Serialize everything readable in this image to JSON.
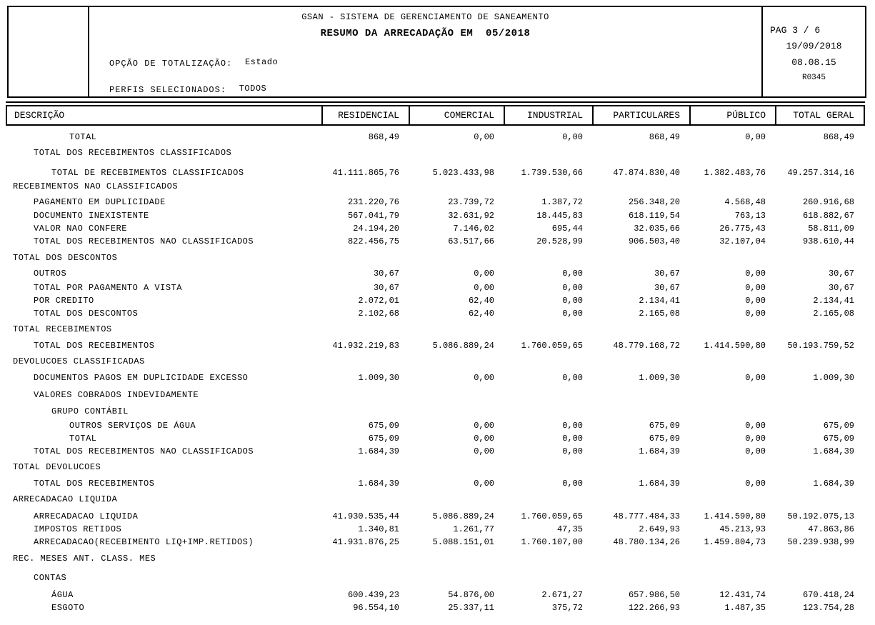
{
  "report_header": {
    "system_title": "GSAN - SISTEMA DE GERENCIAMENTO DE SANEAMENTO",
    "report_title": "RESUMO DA ARRECADAÇÃO EM  05/2018",
    "totalization_label": "OPÇÃO DE TOTALIZAÇÃO:",
    "totalization_value": "Estado",
    "profiles_label": "PERFIS SELECIONADOS:",
    "profiles_value": "TODOS",
    "page_info": "PAG 3 / 6",
    "date": "19/09/2018",
    "time": "08.08.15",
    "report_code": "R0345"
  },
  "table": {
    "columns": {
      "description": "DESCRIÇÃO",
      "residencial": "RESIDENCIAL",
      "comercial": "COMERCIAL",
      "industrial": "INDUSTRIAL",
      "particulares": "PARTICULARES",
      "publico": "PÚBLICO",
      "total_geral": "TOTAL GERAL"
    },
    "rows": [
      {
        "label": "TOTAL",
        "indent": 3,
        "gap": 5,
        "values": [
          "868,49",
          "0,00",
          "0,00",
          "868,49",
          "0,00",
          "868,49"
        ]
      },
      {
        "label": "TOTAL DOS RECEBIMENTOS CLASSIFICADOS",
        "indent": 1,
        "gap": 4,
        "values": []
      },
      {
        "label": "TOTAL DE RECEBIMENTOS CLASSIFICADOS",
        "indent": 2,
        "gap": 10,
        "values": [
          "41.111.865,76",
          "5.023.433,98",
          "1.739.530,66",
          "47.874.830,40",
          "1.382.483,76",
          "49.257.314,16"
        ]
      },
      {
        "label": "RECEBIMENTOS NAO CLASSIFICADOS",
        "indent": 0,
        "gap": 1,
        "values": []
      },
      {
        "label": "PAGAMENTO EM DUPLICIDADE",
        "indent": 1,
        "gap": 4,
        "values": [
          "231.220,76",
          "23.739,72",
          "1.387,72",
          "256.348,20",
          "4.568,48",
          "260.916,68"
        ]
      },
      {
        "label": "DOCUMENTO INEXISTENTE",
        "indent": 1,
        "gap": 1,
        "values": [
          "567.041,79",
          "32.631,92",
          "18.445,83",
          "618.119,54",
          "763,13",
          "618.882,67"
        ]
      },
      {
        "label": "VALOR NAO CONFERE",
        "indent": 1,
        "gap": 0,
        "values": [
          "24.194,20",
          "7.146,02",
          "695,44",
          "32.035,66",
          "26.775,43",
          "58.811,09"
        ]
      },
      {
        "label": "TOTAL DOS RECEBIMENTOS NAO CLASSIFICADOS",
        "indent": 1,
        "gap": 0,
        "values": [
          "822.456,75",
          "63.517,66",
          "20.528,99",
          "906.503,40",
          "32.107,04",
          "938.610,44"
        ]
      },
      {
        "label": "TOTAL DOS DESCONTOS",
        "indent": 0,
        "gap": 5,
        "values": []
      },
      {
        "label": "OUTROS",
        "indent": 1,
        "gap": 4,
        "values": [
          "30,67",
          "0,00",
          "0,00",
          "30,67",
          "0,00",
          "30,67"
        ]
      },
      {
        "label": "TOTAL POR PAGAMENTO A VISTA",
        "indent": 1,
        "gap": 2,
        "values": [
          "30,67",
          "0,00",
          "0,00",
          "30,67",
          "0,00",
          "30,67"
        ]
      },
      {
        "label": "POR CREDITO",
        "indent": 1,
        "gap": 0,
        "values": [
          "2.072,01",
          "62,40",
          "0,00",
          "2.134,41",
          "0,00",
          "2.134,41"
        ]
      },
      {
        "label": "TOTAL DOS DESCONTOS",
        "indent": 1,
        "gap": 0,
        "values": [
          "2.102,68",
          "62,40",
          "0,00",
          "2.165,08",
          "0,00",
          "2.165,08"
        ]
      },
      {
        "label": "TOTAL RECEBIMENTOS",
        "indent": 0,
        "gap": 4,
        "values": []
      },
      {
        "label": "TOTAL DOS RECEBIMENTOS",
        "indent": 1,
        "gap": 5,
        "values": [
          "41.932.219,83",
          "5.086.889,24",
          "1.760.059,65",
          "48.779.168,72",
          "1.414.590,80",
          "50.193.759,52"
        ]
      },
      {
        "label": "DEVOLUCOES CLASSIFICADAS",
        "indent": 0,
        "gap": 4,
        "values": []
      },
      {
        "label": "DOCUMENTOS PAGOS EM DUPLICIDADE EXCESSO",
        "indent": 1,
        "gap": 5,
        "values": [
          "1.009,30",
          "0,00",
          "0,00",
          "1.009,30",
          "0,00",
          "1.009,30"
        ]
      },
      {
        "label": "VALORES COBRADOS INDEVIDAMENTE",
        "indent": 1,
        "gap": 6,
        "values": []
      },
      {
        "label": "GRUPO CONTÁBIL",
        "indent": 2,
        "gap": 5,
        "values": []
      },
      {
        "label": "OUTROS SERVIÇOS DE ÁGUA",
        "indent": 3,
        "gap": 2,
        "values": [
          "675,09",
          "0,00",
          "0,00",
          "675,09",
          "0,00",
          "675,09"
        ]
      },
      {
        "label": "TOTAL",
        "indent": 3,
        "gap": 0,
        "values": [
          "675,09",
          "0,00",
          "0,00",
          "675,09",
          "0,00",
          "675,09"
        ]
      },
      {
        "label": "TOTAL DOS RECEBIMENTOS NAO CLASSIFICADOS",
        "indent": 1,
        "gap": 0,
        "values": [
          "1.684,39",
          "0,00",
          "0,00",
          "1.684,39",
          "0,00",
          "1.684,39"
        ]
      },
      {
        "label": "TOTAL DEVOLUCOES",
        "indent": 0,
        "gap": 4,
        "values": []
      },
      {
        "label": "TOTAL DOS RECEBIMENTOS",
        "indent": 1,
        "gap": 5,
        "values": [
          "1.684,39",
          "0,00",
          "0,00",
          "1.684,39",
          "0,00",
          "1.684,39"
        ]
      },
      {
        "label": "ARRECADACAO LIQUIDA",
        "indent": 0,
        "gap": 4,
        "values": []
      },
      {
        "label": "ARRECADACAO LIQUIDA",
        "indent": 1,
        "gap": 6,
        "values": [
          "41.930.535,44",
          "5.086.889,24",
          "1.760.059,65",
          "48.777.484,33",
          "1.414.590,80",
          "50.192.075,13"
        ]
      },
      {
        "label": "IMPOSTOS RETIDOS",
        "indent": 1,
        "gap": 0,
        "values": [
          "1.340,81",
          "1.261,77",
          "47,35",
          "2.649,93",
          "45.213,93",
          "47.863,86"
        ]
      },
      {
        "label": "ARRECADACAO(RECEBIMENTO LIQ+IMP.RETIDOS)",
        "indent": 1,
        "gap": 0,
        "values": [
          "41.931.876,25",
          "5.088.151,01",
          "1.760.107,00",
          "48.780.134,26",
          "1.459.804,73",
          "50.239.938,99"
        ]
      },
      {
        "label": "REC. MESES ANT. CLASS. MES",
        "indent": 0,
        "gap": 5,
        "values": []
      },
      {
        "label": "CONTAS",
        "indent": 1,
        "gap": 9,
        "values": []
      },
      {
        "label": "ÁGUA",
        "indent": 2,
        "gap": 6,
        "values": [
          "600.439,23",
          "54.876,00",
          "2.671,27",
          "657.986,50",
          "12.431,74",
          "670.418,24"
        ]
      },
      {
        "label": "ESGOTO",
        "indent": 2,
        "gap": 0,
        "values": [
          "96.554,10",
          "25.337,11",
          "375,72",
          "122.266,93",
          "1.487,35",
          "123.754,28"
        ]
      }
    ]
  }
}
